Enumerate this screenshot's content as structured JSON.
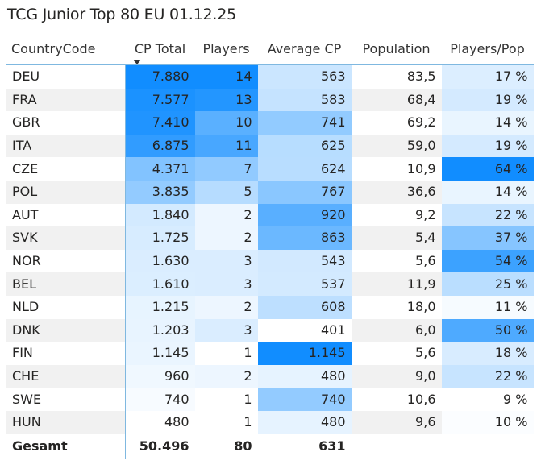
{
  "title": "TCG Junior Top 80 EU 01.12.25",
  "headers": {
    "country": "CountryCode",
    "cp_total": "CP Total",
    "players": "Players",
    "average_cp": "Average CP",
    "population": "Population",
    "players_pop": "Players/Pop"
  },
  "colors": {
    "scale_low": "#ffffff",
    "scale_high": "#118dff",
    "accent_line": "#7fb8e0"
  },
  "rows": [
    {
      "country": "DEU",
      "cp_total": "7.880",
      "players": "14",
      "average_cp": "563",
      "population": "83,5",
      "players_pop": "17 %",
      "cp_total_value": 7880,
      "players_value": 14,
      "average_cp_value": 563,
      "players_pop_value": 17
    },
    {
      "country": "FRA",
      "cp_total": "7.577",
      "players": "13",
      "average_cp": "583",
      "population": "68,4",
      "players_pop": "19 %",
      "cp_total_value": 7577,
      "players_value": 13,
      "average_cp_value": 583,
      "players_pop_value": 19
    },
    {
      "country": "GBR",
      "cp_total": "7.410",
      "players": "10",
      "average_cp": "741",
      "population": "69,2",
      "players_pop": "14 %",
      "cp_total_value": 7410,
      "players_value": 10,
      "average_cp_value": 741,
      "players_pop_value": 14
    },
    {
      "country": "ITA",
      "cp_total": "6.875",
      "players": "11",
      "average_cp": "625",
      "population": "59,0",
      "players_pop": "19 %",
      "cp_total_value": 6875,
      "players_value": 11,
      "average_cp_value": 625,
      "players_pop_value": 19
    },
    {
      "country": "CZE",
      "cp_total": "4.371",
      "players": "7",
      "average_cp": "624",
      "population": "10,9",
      "players_pop": "64 %",
      "cp_total_value": 4371,
      "players_value": 7,
      "average_cp_value": 624,
      "players_pop_value": 64
    },
    {
      "country": "POL",
      "cp_total": "3.835",
      "players": "5",
      "average_cp": "767",
      "population": "36,6",
      "players_pop": "14 %",
      "cp_total_value": 3835,
      "players_value": 5,
      "average_cp_value": 767,
      "players_pop_value": 14
    },
    {
      "country": "AUT",
      "cp_total": "1.840",
      "players": "2",
      "average_cp": "920",
      "population": "9,2",
      "players_pop": "22 %",
      "cp_total_value": 1840,
      "players_value": 2,
      "average_cp_value": 920,
      "players_pop_value": 22
    },
    {
      "country": "SVK",
      "cp_total": "1.725",
      "players": "2",
      "average_cp": "863",
      "population": "5,4",
      "players_pop": "37 %",
      "cp_total_value": 1725,
      "players_value": 2,
      "average_cp_value": 863,
      "players_pop_value": 37
    },
    {
      "country": "NOR",
      "cp_total": "1.630",
      "players": "3",
      "average_cp": "543",
      "population": "5,6",
      "players_pop": "54 %",
      "cp_total_value": 1630,
      "players_value": 3,
      "average_cp_value": 543,
      "players_pop_value": 54
    },
    {
      "country": "BEL",
      "cp_total": "1.610",
      "players": "3",
      "average_cp": "537",
      "population": "11,9",
      "players_pop": "25 %",
      "cp_total_value": 1610,
      "players_value": 3,
      "average_cp_value": 537,
      "players_pop_value": 25
    },
    {
      "country": "NLD",
      "cp_total": "1.215",
      "players": "2",
      "average_cp": "608",
      "population": "18,0",
      "players_pop": "11 %",
      "cp_total_value": 1215,
      "players_value": 2,
      "average_cp_value": 608,
      "players_pop_value": 11
    },
    {
      "country": "DNK",
      "cp_total": "1.203",
      "players": "3",
      "average_cp": "401",
      "population": "6,0",
      "players_pop": "50 %",
      "cp_total_value": 1203,
      "players_value": 3,
      "average_cp_value": 401,
      "players_pop_value": 50
    },
    {
      "country": "FIN",
      "cp_total": "1.145",
      "players": "1",
      "average_cp": "1.145",
      "population": "5,6",
      "players_pop": "18 %",
      "cp_total_value": 1145,
      "players_value": 1,
      "average_cp_value": 1145,
      "players_pop_value": 18
    },
    {
      "country": "CHE",
      "cp_total": "960",
      "players": "2",
      "average_cp": "480",
      "population": "9,0",
      "players_pop": "22 %",
      "cp_total_value": 960,
      "players_value": 2,
      "average_cp_value": 480,
      "players_pop_value": 22
    },
    {
      "country": "SWE",
      "cp_total": "740",
      "players": "1",
      "average_cp": "740",
      "population": "10,6",
      "players_pop": "9 %",
      "cp_total_value": 740,
      "players_value": 1,
      "average_cp_value": 740,
      "players_pop_value": 9
    },
    {
      "country": "HUN",
      "cp_total": "480",
      "players": "1",
      "average_cp": "480",
      "population": "9,6",
      "players_pop": "10 %",
      "cp_total_value": 480,
      "players_value": 1,
      "average_cp_value": 480,
      "players_pop_value": 10
    }
  ],
  "total": {
    "label": "Gesamt",
    "cp_total": "50.496",
    "players": "80",
    "average_cp": "631"
  }
}
